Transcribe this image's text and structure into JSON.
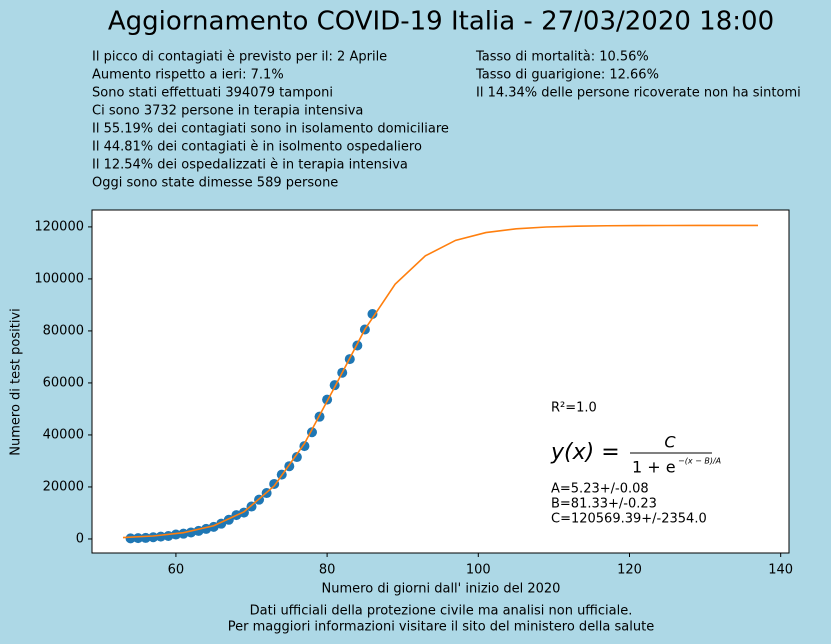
{
  "chart_data": {
    "type": "scatter",
    "title": "Aggiornamento COVID-19 Italia - 27/03/2020 18:00",
    "notes_left": [
      "Il picco di contagiati è previsto per il: 2 Aprile",
      "Aumento rispetto a ieri: 7.1%",
      "Sono stati effettuati 394079 tamponi",
      "Ci sono 3732 persone in terapia intensiva",
      "Il 55.19% dei contagiati sono in isolamento domiciliare",
      "Il 44.81% dei contagiati è in isolmento ospedaliero",
      "Il 12.54% dei ospedalizzati è in terapia intensiva",
      "Oggi sono state dimesse 589 persone"
    ],
    "notes_right": [
      "Tasso di mortalità: 10.56%",
      "Tasso di guarigione: 12.66%",
      "Il 14.34% delle persone ricoverate non ha sintomi"
    ],
    "x_label": "Numero di giorni dall' inizio del 2020",
    "y_label": "Numero di test positivi",
    "footer": [
      "Dati ufficiali della protezione civile ma analisi non ufficiale.",
      "Per maggiori informazioni visitare il sito del ministero della salute"
    ],
    "fit_annotation": {
      "r2": "R²=1.0",
      "lhs": "y(x) =",
      "numerator": "C",
      "denominator": "1 + e",
      "exponent": "−(x − B)/A",
      "params": [
        "A=5.23+/-0.08",
        "B=81.33+/-0.23",
        "C=120569.39+/-2354.0"
      ]
    },
    "xlim": [
      48.9,
      141.1
    ],
    "ylim": [
      -5400,
      126500
    ],
    "xticks": [
      60,
      80,
      100,
      120,
      140
    ],
    "yticks": [
      0,
      20000,
      40000,
      60000,
      80000,
      100000,
      120000
    ],
    "series": [
      {
        "type": "scatter",
        "color": "#1f77b4",
        "x": [
          54,
          55,
          56,
          57,
          58,
          59,
          60,
          61,
          62,
          63,
          64,
          65,
          66,
          67,
          68,
          69,
          70,
          71,
          72,
          73,
          74,
          75,
          76,
          77,
          78,
          79,
          80,
          81,
          82,
          83,
          84,
          85,
          86
        ],
        "values": [
          229,
          322,
          400,
          650,
          888,
          1128,
          1694,
          2036,
          2502,
          3089,
          3858,
          4636,
          5883,
          7375,
          9172,
          10149,
          12462,
          15113,
          17660,
          21157,
          24747,
          27980,
          31506,
          35713,
          41035,
          47021,
          53578,
          59138,
          63927,
          69176,
          74386,
          80539,
          86498
        ]
      },
      {
        "type": "line",
        "color": "#ff7f0e",
        "x": [
          53,
          57,
          61,
          65,
          69,
          73,
          77,
          81,
          85,
          89,
          93,
          97,
          101,
          105,
          109,
          113,
          117,
          121,
          125,
          129,
          133,
          137
        ],
        "values": [
          533,
          1140,
          2423,
          5089,
          10421,
          20373,
          36658,
          58387,
          80616,
          97968,
          108876,
          114828,
          117827,
          119277,
          119965,
          120287,
          120438,
          120508,
          120541,
          120556,
          120563,
          120566
        ]
      }
    ]
  }
}
